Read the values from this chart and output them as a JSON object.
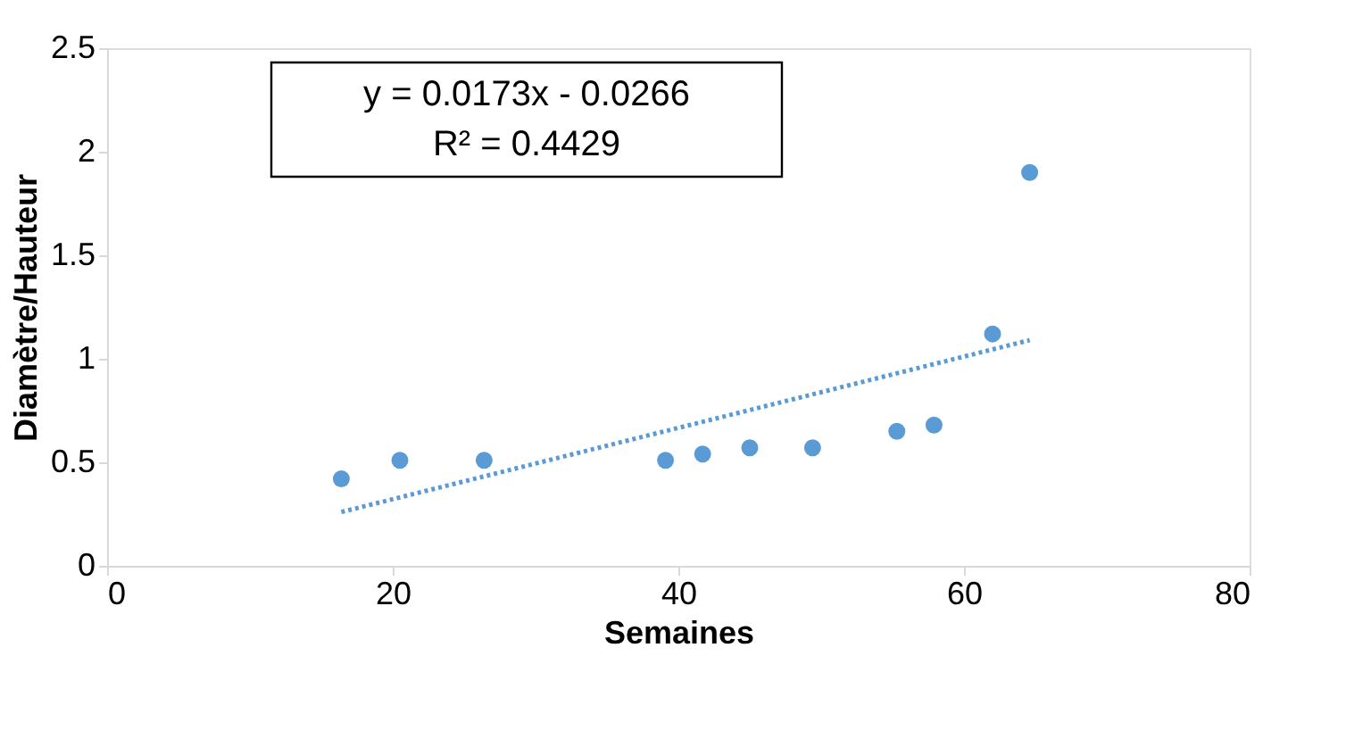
{
  "chart_data": {
    "type": "scatter",
    "xlabel": "Semaines",
    "ylabel": "Diamètre/Hauteur",
    "xlim": [
      0,
      80
    ],
    "xticks": [
      0,
      20,
      40,
      60,
      80
    ],
    "ylim": [
      0,
      2.5
    ],
    "yticks": [
      0,
      0.5,
      1,
      1.5,
      2,
      2.5
    ],
    "grid": false,
    "series": [
      {
        "color": "#5b9bd5",
        "marker": "circle",
        "x": [
          16.4,
          20.5,
          26.4,
          39.1,
          41.7,
          45,
          49.4,
          55.3,
          57.9,
          62,
          64.6
        ],
        "values": [
          0.42,
          0.51,
          0.51,
          0.51,
          0.54,
          0.57,
          0.57,
          0.65,
          0.68,
          1.12,
          1.9
        ]
      },
      {
        "type": "line",
        "color": "#5b9bd5",
        "line_style": "dotted",
        "x": [
          16.4,
          64.6
        ],
        "values": [
          0.26,
          1.09
        ]
      }
    ],
    "annotations": [
      "y = 0.0173x - 0.0266",
      "R² = 0.4429"
    ]
  }
}
